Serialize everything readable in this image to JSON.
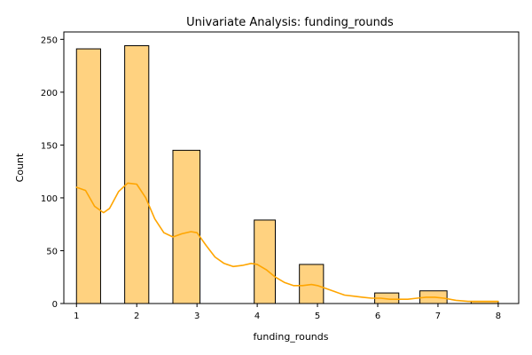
{
  "chart_data": {
    "type": "bar",
    "title": "Univariate Analysis: funding_rounds",
    "xlabel": "funding_rounds",
    "ylabel": "Count",
    "xlim": [
      0.79,
      8.34
    ],
    "ylim": [
      0,
      257
    ],
    "x_ticks": [
      1,
      2,
      3,
      4,
      5,
      6,
      7,
      8
    ],
    "y_ticks": [
      0,
      50,
      100,
      150,
      200,
      250
    ],
    "bar_color": "#FFD280",
    "bar_edge_color": "#000000",
    "kde_color": "#FFA500",
    "bars": [
      {
        "x0": 1.0,
        "x1": 1.4,
        "value": 241
      },
      {
        "x0": 1.8,
        "x1": 2.2,
        "value": 244
      },
      {
        "x0": 2.6,
        "x1": 3.05,
        "value": 145
      },
      {
        "x0": 3.95,
        "x1": 4.3,
        "value": 79
      },
      {
        "x0": 4.7,
        "x1": 5.1,
        "value": 37
      },
      {
        "x0": 5.95,
        "x1": 6.35,
        "value": 10
      },
      {
        "x0": 6.7,
        "x1": 7.15,
        "value": 12
      },
      {
        "x0": 7.55,
        "x1": 8.0,
        "value": 2
      }
    ],
    "kde": {
      "x": [
        1.0,
        1.15,
        1.3,
        1.45,
        1.55,
        1.7,
        1.85,
        2.0,
        2.15,
        2.3,
        2.45,
        2.6,
        2.75,
        2.9,
        3.0,
        3.15,
        3.3,
        3.45,
        3.6,
        3.75,
        3.9,
        4.0,
        4.15,
        4.3,
        4.45,
        4.6,
        4.75,
        4.9,
        5.0,
        5.15,
        5.3,
        5.45,
        5.6,
        5.75,
        5.9,
        6.05,
        6.2,
        6.35,
        6.5,
        6.65,
        6.8,
        6.95,
        7.1,
        7.3,
        7.5,
        7.7,
        7.9,
        8.0
      ],
      "y": [
        110,
        107,
        92,
        86,
        90,
        106,
        114,
        113,
        100,
        80,
        67,
        63,
        66,
        68,
        67,
        55,
        44,
        38,
        35,
        36,
        38,
        37,
        32,
        25,
        20,
        17,
        17,
        18,
        17,
        14,
        11,
        8,
        7,
        6,
        5,
        5,
        4,
        4,
        4,
        5,
        6,
        6,
        5,
        3,
        2,
        2,
        2,
        2
      ]
    }
  }
}
